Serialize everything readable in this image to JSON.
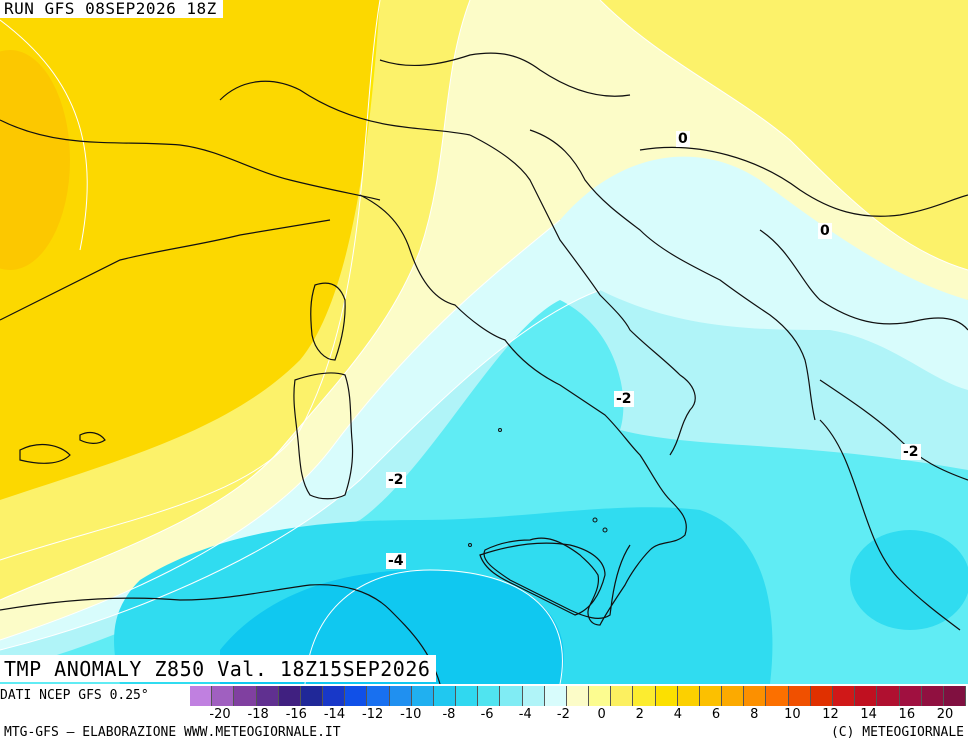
{
  "header": {
    "run_label": "RUN GFS 08SEP2026 18Z"
  },
  "map_title": "TMP ANOMALY Z850 Val. 18Z15SEP2026",
  "contour_labels": [
    "0",
    "0",
    "-2",
    "-2",
    "-2",
    "-4"
  ],
  "data_source": "DATI NCEP GFS 0.25°",
  "footer": {
    "left": "MTG-GFS – ELABORAZIONE WWW.METEOGIORNALE.IT",
    "right": "(C) METEOGIORNALE"
  },
  "legend": {
    "tick_labels": [
      "-20",
      "-18",
      "-16",
      "-14",
      "-12",
      "-10",
      "-8",
      "-6",
      "-4",
      "-2",
      "0",
      "2",
      "4",
      "6",
      "8",
      "10",
      "12",
      "14",
      "16",
      "20"
    ],
    "colors": [
      "#c080e0",
      "#a060c0",
      "#8040a0",
      "#603090",
      "#402080",
      "#202898",
      "#1838c8",
      "#1050e8",
      "#1870f0",
      "#2090f0",
      "#20b0f0",
      "#20c8f0",
      "#30d8f0",
      "#50e4f0",
      "#80ecf4",
      "#b0f4f8",
      "#d8fcfc",
      "#fcfcc8",
      "#fcfc90",
      "#fcf060",
      "#fcec30",
      "#fce000",
      "#fcd000",
      "#fcc000",
      "#fcaa00",
      "#fc9000",
      "#fc7000",
      "#f05000",
      "#e03000",
      "#d01818",
      "#c01020",
      "#b01030",
      "#a01040",
      "#901040",
      "#801040"
    ]
  },
  "colors": {
    "field_warm_strong": "#fcd200",
    "field_warm": "#fce600",
    "field_warm_light": "#fcf26a",
    "field_pale": "#fcfcc8",
    "field_cool_pale": "#d8fcfc",
    "field_cool": "#b0f4f8",
    "field_cool_medium": "#60ecf4",
    "field_cool_strong": "#20dcf0",
    "field_cool_deep": "#10c8f0",
    "coastline": "#101010",
    "isoline": "#ffffff"
  }
}
